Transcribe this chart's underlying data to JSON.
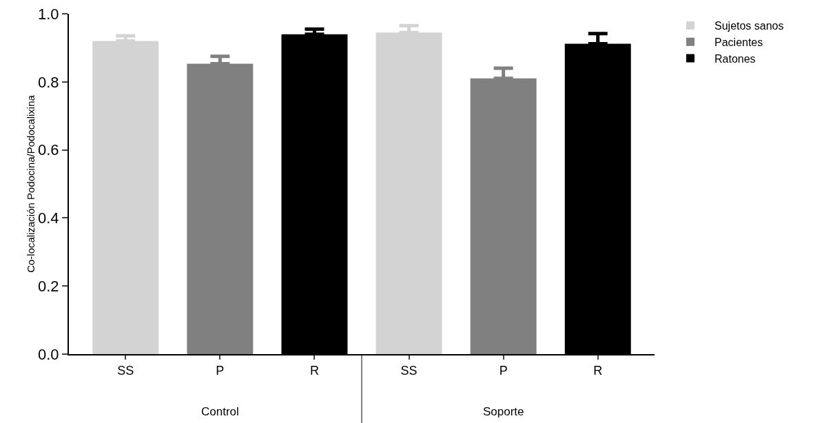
{
  "chart_data": {
    "type": "bar",
    "ylabel": "Co-localización Podocina/Podocalixina",
    "categories": [
      "SS",
      "P",
      "R",
      "SS",
      "P",
      "R"
    ],
    "series": [
      {
        "name": "Sujetos sanos",
        "color": "#d3d3d3",
        "values": [
          0.92,
          null,
          null,
          0.945,
          null,
          null
        ],
        "errors": [
          [
            0.92,
            0.935
          ],
          null,
          null,
          [
            0.945,
            0.965
          ],
          null,
          null
        ]
      },
      {
        "name": "Pacientes",
        "color": "#808080",
        "values": [
          null,
          0.853,
          null,
          null,
          0.81,
          null
        ],
        "errors": [
          null,
          [
            0.853,
            0.875
          ],
          null,
          null,
          [
            0.81,
            0.84
          ],
          null
        ]
      },
      {
        "name": "Ratones",
        "color": "#000000",
        "values": [
          null,
          null,
          0.94,
          null,
          null,
          0.912
        ],
        "errors": [
          null,
          null,
          [
            0.94,
            0.955
          ],
          null,
          null,
          [
            0.912,
            0.942
          ]
        ]
      }
    ],
    "annotations": [
      "Control",
      "Soporte"
    ],
    "ylim": [
      0,
      1
    ],
    "yticks": [
      {
        "value": 0,
        "label": "0.0"
      },
      {
        "value": 0.2,
        "label": "0.2"
      },
      {
        "value": 0.4,
        "label": "0.4"
      },
      {
        "value": 0.6,
        "label": "0.6"
      },
      {
        "value": 0.8,
        "label": "0.8"
      },
      {
        "value": 1,
        "label": "1.0"
      }
    ],
    "grid": false,
    "legend": "top right"
  }
}
